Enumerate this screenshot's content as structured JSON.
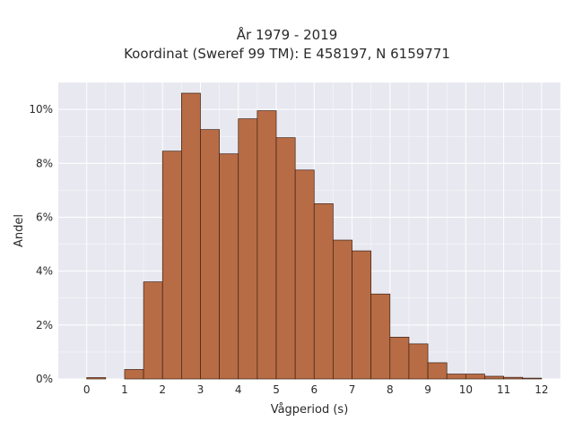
{
  "chart_data": {
    "type": "bar",
    "title_line1": "År 1979 - 2019",
    "title_line2": "Koordinat (Sweref 99 TM): E 458197, N 6159771",
    "xlabel": "Vågperiod (s)",
    "ylabel": "Andel",
    "xlim": [
      -0.75,
      12.5
    ],
    "ylim": [
      0,
      11
    ],
    "x_ticks": [
      0,
      1,
      2,
      3,
      4,
      5,
      6,
      7,
      8,
      9,
      10,
      11,
      12
    ],
    "y_ticks": [
      0,
      2,
      4,
      6,
      8,
      10
    ],
    "y_tick_labels": [
      "0%",
      "2%",
      "4%",
      "6%",
      "8%",
      "10%"
    ],
    "bin_width": 0.5,
    "bins": [
      {
        "x0": 0.0,
        "x1": 0.5,
        "value": 0.05
      },
      {
        "x0": 1.0,
        "x1": 1.5,
        "value": 0.35
      },
      {
        "x0": 1.5,
        "x1": 2.0,
        "value": 3.6
      },
      {
        "x0": 2.0,
        "x1": 2.5,
        "value": 8.45
      },
      {
        "x0": 2.5,
        "x1": 3.0,
        "value": 10.6
      },
      {
        "x0": 3.0,
        "x1": 3.5,
        "value": 9.25
      },
      {
        "x0": 3.5,
        "x1": 4.0,
        "value": 8.35
      },
      {
        "x0": 4.0,
        "x1": 4.5,
        "value": 9.65
      },
      {
        "x0": 4.5,
        "x1": 5.0,
        "value": 9.95
      },
      {
        "x0": 5.0,
        "x1": 5.5,
        "value": 8.95
      },
      {
        "x0": 5.5,
        "x1": 6.0,
        "value": 7.75
      },
      {
        "x0": 6.0,
        "x1": 6.5,
        "value": 6.5
      },
      {
        "x0": 6.5,
        "x1": 7.0,
        "value": 5.15
      },
      {
        "x0": 7.0,
        "x1": 7.5,
        "value": 4.75
      },
      {
        "x0": 7.5,
        "x1": 8.0,
        "value": 3.15
      },
      {
        "x0": 8.0,
        "x1": 8.5,
        "value": 1.55
      },
      {
        "x0": 8.5,
        "x1": 9.0,
        "value": 1.3
      },
      {
        "x0": 9.0,
        "x1": 9.5,
        "value": 0.6
      },
      {
        "x0": 9.5,
        "x1": 10.0,
        "value": 0.18
      },
      {
        "x0": 10.0,
        "x1": 10.5,
        "value": 0.18
      },
      {
        "x0": 10.5,
        "x1": 11.0,
        "value": 0.1
      },
      {
        "x0": 11.0,
        "x1": 11.5,
        "value": 0.06
      },
      {
        "x0": 11.5,
        "x1": 12.0,
        "value": 0.03
      }
    ],
    "colors": {
      "bar_fill": "#b86c45",
      "bar_edge": "#3d2114",
      "plot_background": "#e8e8f0",
      "grid": "#ffffff"
    },
    "grid": true,
    "legend": "none"
  }
}
